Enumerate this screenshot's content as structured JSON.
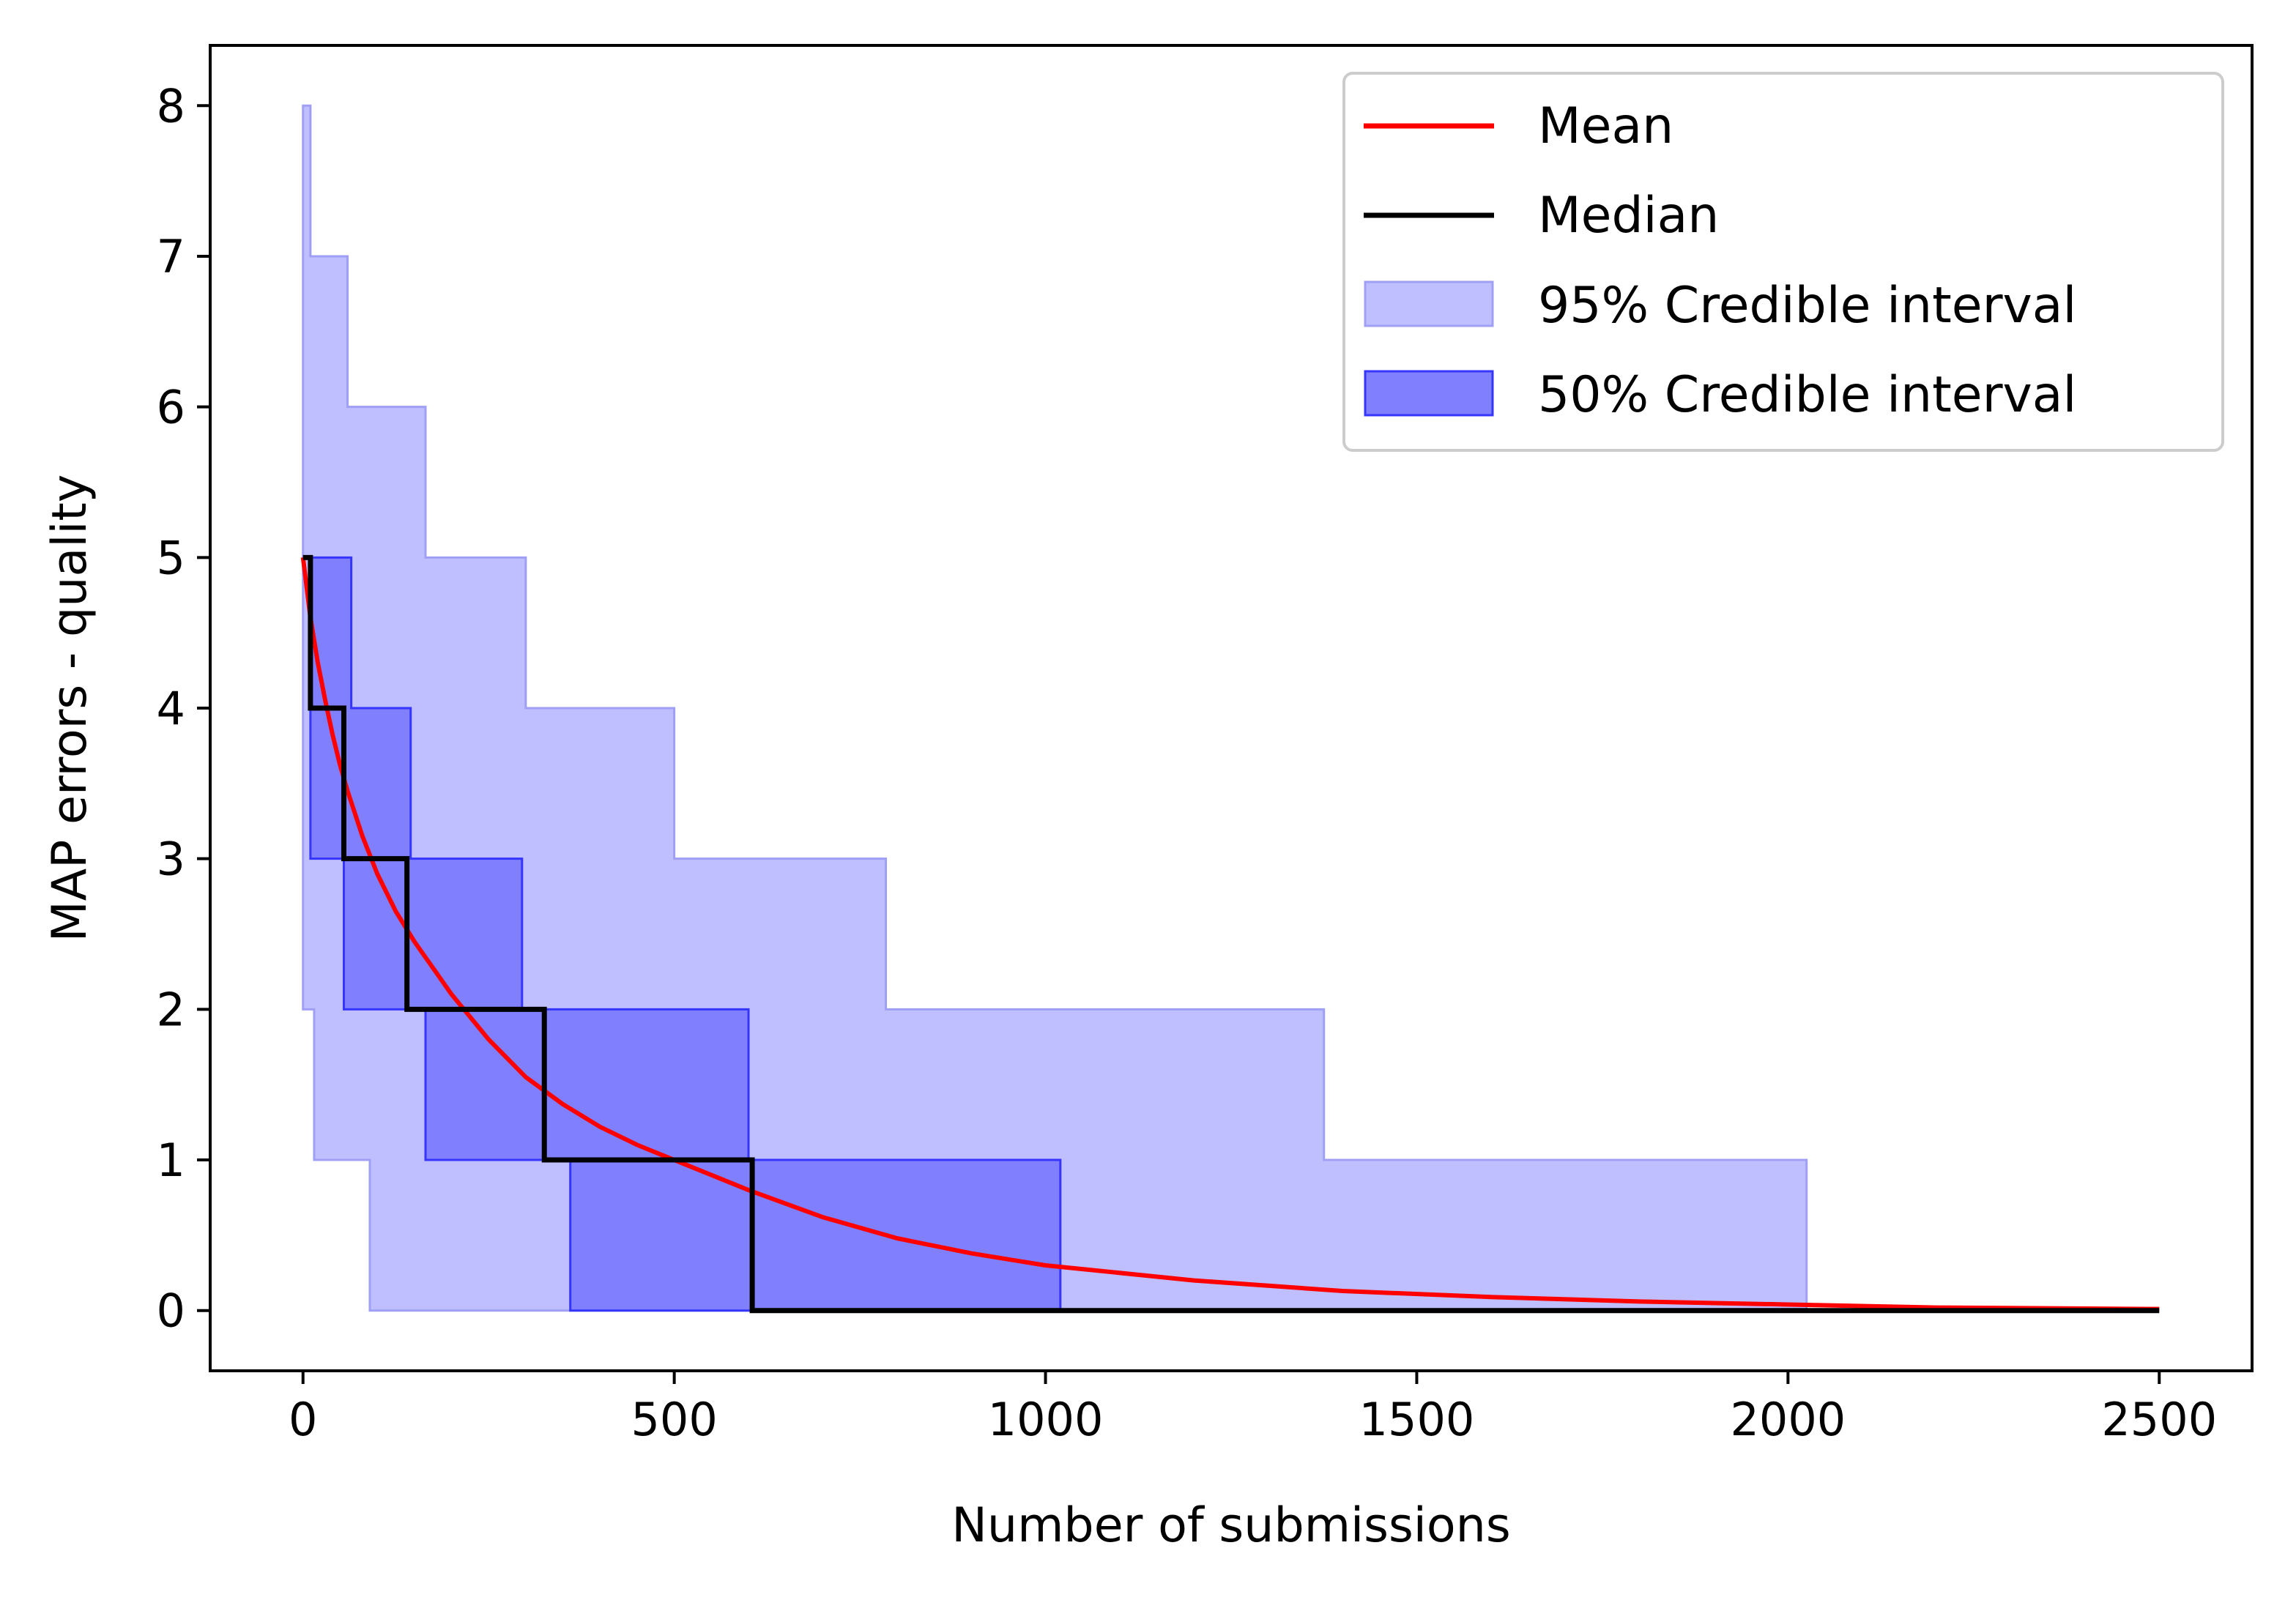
{
  "chart_data": {
    "type": "line",
    "title": "",
    "xlabel": "Number of submissions",
    "ylabel": "MAP errors - quality",
    "xlim": [
      -125,
      2625
    ],
    "ylim": [
      -0.4,
      8.4
    ],
    "xticks": [
      0,
      500,
      1000,
      1500,
      2000,
      2500
    ],
    "xtick_labels": [
      "0",
      "500",
      "1000",
      "1500",
      "2000",
      "2500"
    ],
    "yticks": [
      0,
      1,
      2,
      3,
      4,
      5,
      6,
      7,
      8
    ],
    "ytick_labels": [
      "0",
      "1",
      "2",
      "3",
      "4",
      "5",
      "6",
      "7",
      "8"
    ],
    "legend_position": "top-right",
    "colors": {
      "mean": "#ff0000",
      "median": "#000000",
      "ci95_fill": "#bfbfff",
      "ci95_edge": "#9f9ff5",
      "ci50_fill": "#8080ff",
      "ci50_edge": "#3535ff"
    },
    "series": [
      {
        "name": "Mean",
        "kind": "line",
        "x": [
          0,
          10,
          20,
          30,
          40,
          50,
          60,
          80,
          100,
          125,
          150,
          200,
          250,
          300,
          350,
          400,
          450,
          500,
          600,
          700,
          800,
          900,
          1000,
          1200,
          1400,
          1600,
          1800,
          2000,
          2200,
          2500
        ],
        "y": [
          5.0,
          4.6,
          4.3,
          4.05,
          3.82,
          3.62,
          3.45,
          3.15,
          2.9,
          2.65,
          2.45,
          2.1,
          1.8,
          1.55,
          1.37,
          1.22,
          1.1,
          1.0,
          0.8,
          0.62,
          0.48,
          0.38,
          0.3,
          0.2,
          0.13,
          0.09,
          0.06,
          0.04,
          0.02,
          0.01
        ]
      },
      {
        "name": "Median",
        "kind": "step",
        "x": [
          0,
          10,
          10,
          55,
          55,
          140,
          140,
          325,
          325,
          605,
          605,
          2500
        ],
        "y": [
          5,
          5,
          4,
          4,
          3,
          3,
          2,
          2,
          1,
          1,
          0,
          0
        ]
      },
      {
        "name": "95% Credible interval",
        "kind": "band",
        "upper_x": [
          0,
          10,
          10,
          60,
          60,
          165,
          165,
          300,
          300,
          500,
          500,
          785,
          785,
          1375,
          1375,
          2025,
          2025
        ],
        "upper_y": [
          8,
          8,
          7,
          7,
          6,
          6,
          5,
          5,
          4,
          4,
          3,
          3,
          2,
          2,
          1,
          1,
          0
        ],
        "lower_x": [
          0,
          0,
          15,
          15,
          90,
          90,
          2025
        ],
        "lower_y": [
          8,
          2,
          2,
          1,
          1,
          0,
          0
        ]
      },
      {
        "name": "50% Credible interval",
        "kind": "band",
        "upper_x": [
          0,
          65,
          65,
          145,
          145,
          295,
          295,
          600,
          600,
          1020,
          1020
        ],
        "upper_y": [
          5,
          5,
          4,
          4,
          3,
          3,
          2,
          2,
          1,
          1,
          0
        ],
        "lower_x": [
          0,
          10,
          10,
          55,
          55,
          165,
          165,
          360,
          360,
          1020
        ],
        "lower_y": [
          5,
          5,
          3,
          3,
          2,
          2,
          1,
          1,
          0,
          0
        ]
      }
    ]
  }
}
